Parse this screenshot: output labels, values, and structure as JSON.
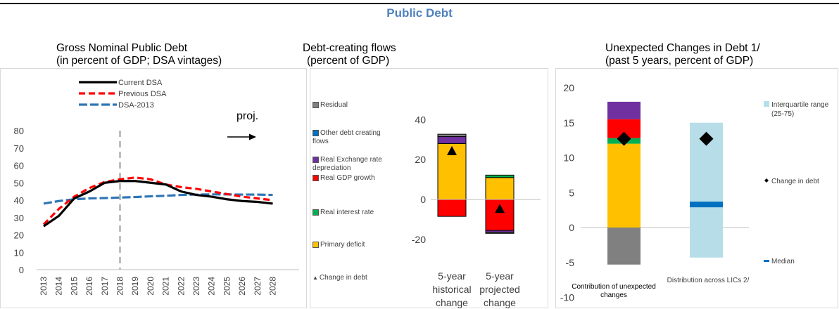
{
  "page": {
    "title": "Public Debt"
  },
  "panels": {
    "left": {
      "title_line1": "Gross Nominal Public Debt",
      "title_line2": "(in percent of GDP; DSA vintages)"
    },
    "middle": {
      "title_line1": "Debt-creating flows",
      "title_line2": "(percent of GDP)"
    },
    "right": {
      "title_line1": "Unexpected Changes in Debt 1/",
      "title_line2": "(past 5 years, percent of GDP)"
    }
  },
  "chart_data": [
    {
      "type": "line",
      "x": [
        "2013",
        "2014",
        "2015",
        "2016",
        "2017",
        "2018",
        "2019",
        "2020",
        "2021",
        "2022",
        "2023",
        "2024",
        "2025",
        "2026",
        "2027",
        "2028"
      ],
      "ylim": [
        0,
        80
      ],
      "yticks": [
        0,
        10,
        20,
        30,
        40,
        50,
        60,
        70,
        80
      ],
      "annotation": "proj.",
      "projection_start": "2018",
      "series": [
        {
          "name": "Current DSA",
          "color": "#000000",
          "style": "solid",
          "values": [
            25,
            31,
            41,
            45,
            50,
            51,
            51,
            50,
            49,
            45,
            43,
            42,
            40.5,
            39.5,
            39,
            38
          ]
        },
        {
          "name": "Previous DSA",
          "color": "#ff0000",
          "style": "dashed",
          "values": [
            26,
            35,
            42,
            47,
            50.5,
            52,
            53,
            52,
            49,
            47.5,
            46.5,
            45,
            43.5,
            42,
            41,
            40
          ]
        },
        {
          "name": "DSA-2013",
          "color": "#2e75b6",
          "style": "dashed-long",
          "values": [
            38,
            39.5,
            40.5,
            41,
            41.2,
            41.5,
            41.8,
            42.2,
            42.5,
            43,
            43.2,
            43.3,
            43.3,
            43.2,
            43.2,
            43
          ]
        }
      ]
    },
    {
      "type": "bar",
      "stacked": true,
      "categories": [
        {
          "line1": "5-year",
          "line2": "historical",
          "line3": "change"
        },
        {
          "line1": "5-year",
          "line2": "projected",
          "line3": "change"
        }
      ],
      "ylim": [
        -20,
        40
      ],
      "yticks": [
        -20,
        0,
        20,
        40
      ],
      "legend": [
        "Residual",
        "Other debt creating flows",
        "Real Exchange rate depreciation",
        "Real GDP growth",
        "Real interest rate",
        "Primary deficit",
        "Change in debt"
      ],
      "series": [
        {
          "name": "Primary deficit",
          "color": "#ffc000",
          "values": [
            28,
            11
          ]
        },
        {
          "name": "Real interest rate",
          "color": "#00b050",
          "values": [
            0,
            1.2
          ]
        },
        {
          "name": "Real GDP growth",
          "color": "#ff0000",
          "values": [
            -8.5,
            -15.5
          ]
        },
        {
          "name": "Real Exchange rate depreciation",
          "color": "#7030a0",
          "values": [
            3.5,
            -1.0
          ]
        },
        {
          "name": "Other debt creating flows",
          "color": "#0070c0",
          "values": [
            0,
            0
          ]
        },
        {
          "name": "Residual",
          "color": "#808080",
          "values": [
            1.2,
            -0.5
          ]
        }
      ],
      "change_in_debt": [
        24,
        -5
      ]
    },
    {
      "type": "bar",
      "stacked": true,
      "categories": [
        "Contribution of unexpected changes",
        "Distribution across LICs 2/"
      ],
      "ylim": [
        -10,
        20
      ],
      "yticks": [
        -10,
        -5,
        0,
        5,
        10,
        15,
        20
      ],
      "contribution": [
        {
          "color": "#808080",
          "value": -5.3
        },
        {
          "color": "#ffc000",
          "value": 12.0
        },
        {
          "color": "#00b050",
          "value": 0.8
        },
        {
          "color": "#ff0000",
          "value": 2.7
        },
        {
          "color": "#7030a0",
          "value": 2.5
        }
      ],
      "interquartile_range": [
        -4.3,
        15.0
      ],
      "median": 3.3,
      "change_in_debt": [
        12.7,
        12.7
      ],
      "legend": {
        "iqr": "Interquartile range (25-75)",
        "change": "Change in debt",
        "median": "Median"
      }
    }
  ]
}
